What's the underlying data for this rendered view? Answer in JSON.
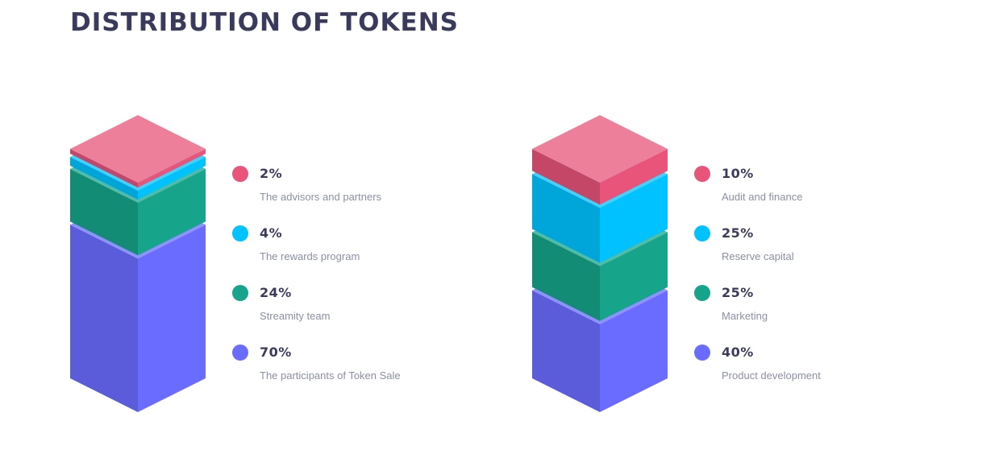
{
  "title": "DISTRIBUTION OF TOKENS",
  "colors": {
    "red": "#e8547a",
    "cyan": "#00c2ff",
    "teal": "#16a58a",
    "purple": "#6a6cff"
  },
  "chart_data": [
    {
      "type": "stacked-3d-bar",
      "series": [
        {
          "name": "The advisors and partners",
          "value": 2,
          "label": "2%",
          "color": "red"
        },
        {
          "name": "The rewards program",
          "value": 4,
          "label": "4%",
          "color": "cyan"
        },
        {
          "name": "Streamity team",
          "value": 24,
          "label": "24%",
          "color": "teal"
        },
        {
          "name": "The participants of Token Sale",
          "value": 70,
          "label": "70%",
          "color": "purple"
        }
      ]
    },
    {
      "type": "stacked-3d-bar",
      "series": [
        {
          "name": "Audit and finance",
          "value": 10,
          "label": "10%",
          "color": "red"
        },
        {
          "name": "Reserve capital",
          "value": 25,
          "label": "25%",
          "color": "cyan"
        },
        {
          "name": "Marketing",
          "value": 25,
          "label": "25%",
          "color": "teal"
        },
        {
          "name": "Product development",
          "value": 40,
          "label": "40%",
          "color": "purple"
        }
      ]
    }
  ]
}
